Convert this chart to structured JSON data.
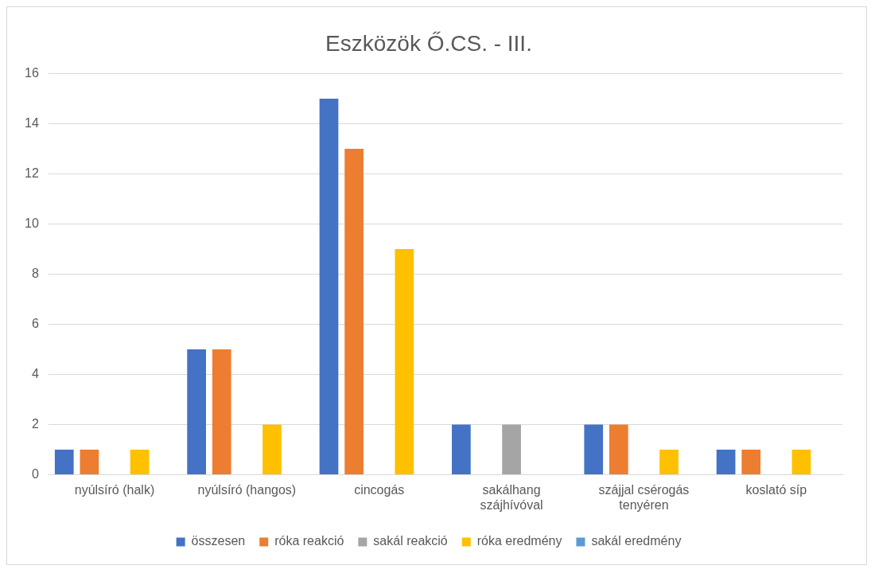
{
  "chart_data": {
    "type": "bar",
    "title": "Eszközök Ő.CS. - III.",
    "categories": [
      "nyúlsíró (halk)",
      "nyúlsíró (hangos)",
      "cincogás",
      "sakálhang szájhívóval",
      "szájjal csérogás tenyéren",
      "koslató síp"
    ],
    "series": [
      {
        "name": "összesen",
        "color": "#4472c4",
        "values": [
          1,
          5,
          15,
          2,
          2,
          1
        ]
      },
      {
        "name": "róka reakció",
        "color": "#ed7d31",
        "values": [
          1,
          5,
          13,
          0,
          2,
          1
        ]
      },
      {
        "name": "sakál reakció",
        "color": "#a5a5a5",
        "values": [
          0,
          0,
          0,
          2,
          0,
          0
        ]
      },
      {
        "name": "róka eredmény",
        "color": "#ffc000",
        "values": [
          1,
          2,
          9,
          0,
          1,
          1
        ]
      },
      {
        "name": "sakál eredmény",
        "color": "#5b9bd5",
        "values": [
          0,
          0,
          0,
          0,
          0,
          0
        ]
      }
    ],
    "ylim": [
      0,
      16
    ],
    "yticks": [
      0,
      2,
      4,
      6,
      8,
      10,
      12,
      14,
      16
    ],
    "grid": "y",
    "legend": "bottom"
  }
}
